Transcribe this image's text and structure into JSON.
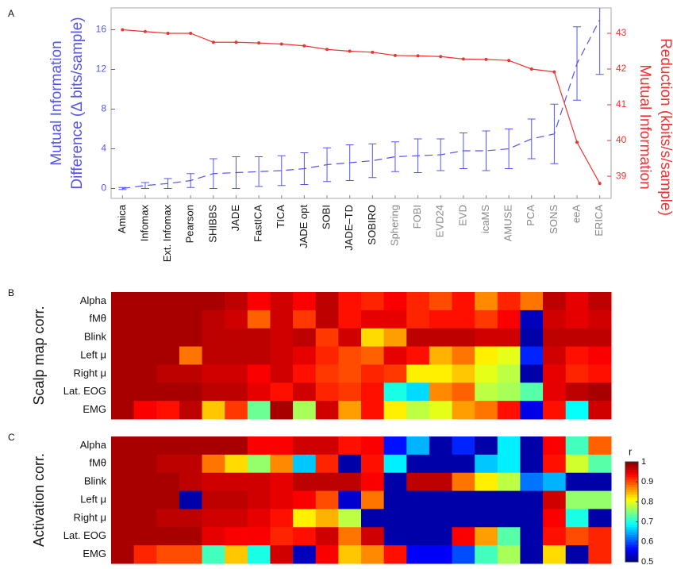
{
  "chart_data": [
    {
      "type": "line",
      "panel": "A",
      "categories": [
        "Amica",
        "Infomax",
        "Ext. Infomax",
        "Pearson",
        "SHIBBS",
        "JADE",
        "FastICA",
        "TICA",
        "JADE opt",
        "SOBI",
        "JADE–TD",
        "SOBIRO",
        "Sphering",
        "FOBI",
        "EVD24",
        "EVD",
        "icaMS",
        "AMUSE",
        "PCA",
        "SONS",
        "eeA",
        "ERICA"
      ],
      "category_colors": [
        "#111",
        "#111",
        "#111",
        "#111",
        "#111",
        "#111",
        "#111",
        "#111",
        "#111",
        "#111",
        "#111",
        "#111",
        "#888",
        "#888",
        "#888",
        "#888",
        "#888",
        "#888",
        "#888",
        "#888",
        "#888",
        "#888"
      ],
      "ylabel": [
        "Mutual Information",
        "Difference (Δ bits/sample)"
      ],
      "y2label": [
        "Mutual Information",
        "Reduction (kbits/s/sample)"
      ],
      "ylim": [
        -1,
        18.2
      ],
      "yticks": [
        0,
        4,
        8,
        12,
        16
      ],
      "y2lim": [
        38.38,
        43.71
      ],
      "y2ticks": [
        39,
        40,
        41,
        42,
        43
      ],
      "series": [
        {
          "color": "#5555ee",
          "values": [
            0,
            0.3,
            0.5,
            0.8,
            1.5,
            1.6,
            1.7,
            1.8,
            2.0,
            2.4,
            2.6,
            2.8,
            3.2,
            3.3,
            3.4,
            3.8,
            3.8,
            4.0,
            5.0,
            5.5,
            12.6,
            17.0
          ],
          "errors": [
            0.1,
            0.3,
            0.5,
            0.7,
            1.5,
            1.6,
            1.5,
            1.5,
            1.6,
            1.7,
            1.8,
            1.7,
            1.5,
            1.7,
            1.6,
            1.8,
            2.0,
            2.0,
            2.0,
            3.0,
            3.7,
            5.5
          ]
        },
        {
          "color": "#ee3333",
          "axis": "y2",
          "values": [
            43.1,
            43.05,
            43.0,
            43.0,
            42.75,
            42.75,
            42.73,
            42.7,
            42.65,
            42.55,
            42.5,
            42.47,
            42.38,
            42.37,
            42.35,
            42.28,
            42.27,
            42.24,
            42.0,
            41.92,
            39.95,
            38.8
          ]
        }
      ]
    },
    {
      "type": "heatmap",
      "panel": "B",
      "ylabel": "Scalp map corr.",
      "rows": [
        "Alpha",
        "fMθ",
        "Blink",
        "Left μ",
        "Right μ",
        "Lat. EOG",
        "EMG"
      ],
      "zlim": [
        0.5,
        1
      ],
      "values": [
        [
          0.98,
          0.98,
          0.98,
          0.98,
          0.98,
          0.97,
          0.94,
          0.96,
          0.94,
          0.97,
          0.93,
          0.92,
          0.94,
          0.92,
          0.9,
          0.93,
          0.87,
          0.92,
          0.88,
          0.97,
          0.95,
          0.97
        ],
        [
          0.98,
          0.98,
          0.98,
          0.98,
          0.97,
          0.96,
          0.89,
          0.96,
          0.91,
          0.97,
          0.93,
          0.95,
          0.95,
          0.92,
          0.93,
          0.93,
          0.91,
          0.94,
          0.53,
          0.96,
          0.95,
          0.96
        ],
        [
          0.98,
          0.98,
          0.98,
          0.98,
          0.97,
          0.97,
          0.97,
          0.96,
          0.97,
          0.91,
          0.96,
          0.83,
          0.86,
          0.97,
          0.97,
          0.97,
          0.96,
          0.96,
          0.52,
          0.97,
          0.97,
          0.97
        ],
        [
          0.98,
          0.98,
          0.98,
          0.88,
          0.97,
          0.97,
          0.97,
          0.96,
          0.95,
          0.92,
          0.9,
          0.89,
          0.95,
          0.93,
          0.85,
          0.88,
          0.82,
          0.8,
          0.58,
          0.96,
          0.93,
          0.94
        ],
        [
          0.98,
          0.98,
          0.97,
          0.97,
          0.96,
          0.96,
          0.94,
          0.96,
          0.93,
          0.91,
          0.9,
          0.92,
          0.91,
          0.82,
          0.82,
          0.84,
          0.8,
          0.78,
          0.52,
          0.95,
          0.92,
          0.93
        ],
        [
          0.98,
          0.98,
          0.98,
          0.98,
          0.97,
          0.97,
          0.95,
          0.93,
          0.96,
          0.92,
          0.91,
          0.93,
          0.7,
          0.67,
          0.87,
          0.89,
          0.78,
          0.77,
          0.73,
          0.95,
          0.97,
          0.98
        ],
        [
          0.98,
          0.94,
          0.93,
          0.97,
          0.84,
          0.91,
          0.74,
          0.98,
          0.77,
          0.96,
          0.86,
          0.93,
          0.82,
          0.78,
          0.8,
          0.86,
          0.88,
          0.93,
          0.55,
          0.93,
          0.69,
          0.96
        ]
      ]
    },
    {
      "type": "heatmap",
      "panel": "C",
      "ylabel": "Activation corr.",
      "rows": [
        "Alpha",
        "fMθ",
        "Blink",
        "Left μ",
        "Right μ",
        "Lat. EOG",
        "EMG"
      ],
      "zlim": [
        0.5,
        1
      ],
      "colorbar": true,
      "colorbar_title": "r",
      "zticks": [
        0.5,
        0.6,
        0.7,
        0.8,
        0.9,
        1
      ],
      "values": [
        [
          0.98,
          0.98,
          0.98,
          0.98,
          0.98,
          0.98,
          0.94,
          0.94,
          0.96,
          0.96,
          0.93,
          0.94,
          0.57,
          0.65,
          0.52,
          0.58,
          0.52,
          0.68,
          0.52,
          0.94,
          0.72,
          0.89
        ],
        [
          0.98,
          0.98,
          0.97,
          0.97,
          0.88,
          0.83,
          0.76,
          0.87,
          0.66,
          0.92,
          0.52,
          0.93,
          0.68,
          0.52,
          0.52,
          0.52,
          0.66,
          0.68,
          0.52,
          0.93,
          0.79,
          0.73
        ],
        [
          0.98,
          0.98,
          0.98,
          0.97,
          0.96,
          0.96,
          0.96,
          0.95,
          0.97,
          0.97,
          0.97,
          0.94,
          0.52,
          0.97,
          0.97,
          0.88,
          0.82,
          0.78,
          0.62,
          0.65,
          0.52,
          0.52
        ],
        [
          0.98,
          0.98,
          0.98,
          0.52,
          0.97,
          0.97,
          0.96,
          0.95,
          0.94,
          0.9,
          0.54,
          0.88,
          0.52,
          0.52,
          0.52,
          0.52,
          0.52,
          0.52,
          0.52,
          0.96,
          0.76,
          0.76
        ],
        [
          0.98,
          0.98,
          0.97,
          0.97,
          0.96,
          0.96,
          0.95,
          0.93,
          0.82,
          0.85,
          0.78,
          0.52,
          0.52,
          0.52,
          0.52,
          0.52,
          0.52,
          0.52,
          0.52,
          0.94,
          0.7,
          0.52
        ],
        [
          0.98,
          0.98,
          0.98,
          0.98,
          0.95,
          0.94,
          0.94,
          0.92,
          0.93,
          0.96,
          0.88,
          0.96,
          0.52,
          0.52,
          0.52,
          0.94,
          0.86,
          0.73,
          0.52,
          0.93,
          0.9,
          0.92
        ],
        [
          0.98,
          0.92,
          0.9,
          0.9,
          0.72,
          0.84,
          0.7,
          0.96,
          0.53,
          0.94,
          0.84,
          0.87,
          0.93,
          0.56,
          0.56,
          0.6,
          0.72,
          0.77,
          0.52,
          0.83,
          0.52,
          0.92
        ]
      ]
    }
  ]
}
